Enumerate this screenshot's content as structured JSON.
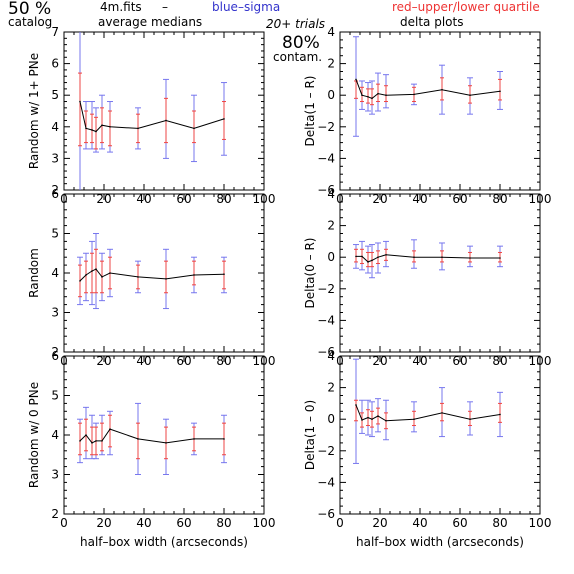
{
  "header": {
    "left_big": "50 %",
    "left_small": "catalog",
    "file": "4m.fits",
    "dash": "–",
    "sigma_note": "blue–sigma",
    "quartile_note": "red–upper/lower quartile",
    "avg_label": "average medians",
    "trials": "20+ trials",
    "contam_pct": "80%",
    "contam": "contam.",
    "delta_label": "delta plots"
  },
  "colors": {
    "sigma": "#7777ee",
    "quartile": "#ee4444",
    "median": "#000000"
  },
  "chart_data": [
    {
      "type": "line",
      "id": "avg-1plus",
      "ylabel": "Random w/ 1+ PNe",
      "xlabel": "",
      "xlim": [
        0,
        100
      ],
      "ylim": [
        2,
        7
      ],
      "xticks": [
        "0",
        "20",
        "40",
        "60",
        "80",
        "100"
      ],
      "yticks": [
        "2",
        "3",
        "4",
        "5",
        "6",
        "7"
      ],
      "x": [
        8,
        11,
        14,
        16,
        19,
        23,
        37,
        51,
        65,
        80
      ],
      "median": [
        4.8,
        3.95,
        3.9,
        3.85,
        4.05,
        4.0,
        3.95,
        4.2,
        3.95,
        4.25
      ],
      "sigma": [
        [
          0.5,
          7.2
        ],
        [
          3.3,
          4.8
        ],
        [
          3.3,
          4.8
        ],
        [
          3.2,
          4.6
        ],
        [
          3.3,
          5.0
        ],
        [
          3.2,
          4.8
        ],
        [
          3.3,
          4.6
        ],
        [
          3.0,
          5.5
        ],
        [
          2.9,
          5.0
        ],
        [
          3.1,
          5.4
        ]
      ],
      "quartile": [
        [
          3.4,
          5.7
        ],
        [
          3.5,
          4.5
        ],
        [
          3.5,
          4.4
        ],
        [
          3.3,
          4.3
        ],
        [
          3.5,
          4.6
        ],
        [
          3.4,
          4.5
        ],
        [
          3.5,
          4.4
        ],
        [
          3.5,
          4.9
        ],
        [
          3.5,
          4.5
        ],
        [
          3.6,
          4.8
        ]
      ]
    },
    {
      "type": "line",
      "id": "avg-random",
      "ylabel": "Random",
      "xlabel": "",
      "xlim": [
        0,
        100
      ],
      "ylim": [
        2,
        6
      ],
      "xticks": [
        "0",
        "20",
        "40",
        "60",
        "80",
        "100"
      ],
      "yticks": [
        "2",
        "3",
        "4",
        "5",
        "6"
      ],
      "x": [
        8,
        11,
        14,
        16,
        19,
        23,
        37,
        51,
        65,
        80
      ],
      "median": [
        3.8,
        3.95,
        4.05,
        4.1,
        3.9,
        4.0,
        3.9,
        3.85,
        3.95,
        3.97
      ],
      "sigma": [
        [
          3.2,
          4.4
        ],
        [
          3.3,
          4.5
        ],
        [
          3.2,
          4.8
        ],
        [
          3.1,
          5.0
        ],
        [
          3.3,
          4.5
        ],
        [
          3.4,
          4.6
        ],
        [
          3.5,
          4.3
        ],
        [
          3.1,
          4.6
        ],
        [
          3.5,
          4.4
        ],
        [
          3.5,
          4.4
        ]
      ],
      "quartile": [
        [
          3.4,
          4.2
        ],
        [
          3.5,
          4.3
        ],
        [
          3.5,
          4.5
        ],
        [
          3.5,
          4.6
        ],
        [
          3.5,
          4.3
        ],
        [
          3.6,
          4.4
        ],
        [
          3.6,
          4.2
        ],
        [
          3.5,
          4.3
        ],
        [
          3.7,
          4.3
        ],
        [
          3.6,
          4.3
        ]
      ]
    },
    {
      "type": "line",
      "id": "avg-0",
      "ylabel": "Random w/ 0 PNe",
      "xlabel": "half–box width (arcseconds)",
      "xlim": [
        0,
        100
      ],
      "ylim": [
        2,
        6
      ],
      "xticks": [
        "0",
        "20",
        "40",
        "60",
        "80",
        "100"
      ],
      "yticks": [
        "2",
        "3",
        "4",
        "5",
        "6"
      ],
      "x": [
        8,
        11,
        14,
        16,
        19,
        23,
        37,
        51,
        65,
        80
      ],
      "median": [
        3.85,
        4.0,
        3.8,
        3.85,
        3.85,
        4.15,
        3.9,
        3.8,
        3.9,
        3.9
      ],
      "sigma": [
        [
          3.3,
          4.4
        ],
        [
          3.4,
          4.7
        ],
        [
          3.4,
          4.5
        ],
        [
          3.4,
          4.3
        ],
        [
          3.5,
          4.5
        ],
        [
          3.5,
          4.6
        ],
        [
          3.0,
          4.8
        ],
        [
          3.0,
          4.4
        ],
        [
          3.5,
          4.3
        ],
        [
          3.3,
          4.5
        ]
      ],
      "quartile": [
        [
          3.5,
          4.3
        ],
        [
          3.6,
          4.4
        ],
        [
          3.5,
          4.2
        ],
        [
          3.5,
          4.2
        ],
        [
          3.6,
          4.3
        ],
        [
          3.7,
          4.5
        ],
        [
          3.4,
          4.3
        ],
        [
          3.4,
          4.2
        ],
        [
          3.6,
          4.2
        ],
        [
          3.5,
          4.3
        ]
      ]
    },
    {
      "type": "line",
      "id": "delta-1R",
      "ylabel": "Delta(1 – R)",
      "xlabel": "",
      "xlim": [
        0,
        100
      ],
      "ylim": [
        -6,
        4
      ],
      "xticks": [
        "0",
        "20",
        "40",
        "60",
        "80",
        "100"
      ],
      "yticks": [
        "−6",
        "−4",
        "−2",
        "0",
        "2",
        "4"
      ],
      "x": [
        8,
        11,
        14,
        16,
        19,
        23,
        37,
        51,
        65,
        80
      ],
      "median": [
        1.0,
        0.0,
        -0.1,
        -0.2,
        0.1,
        0.0,
        0.05,
        0.35,
        0.0,
        0.25
      ],
      "sigma": [
        [
          -2.6,
          3.7
        ],
        [
          -0.9,
          0.9
        ],
        [
          -1.0,
          0.8
        ],
        [
          -1.2,
          0.9
        ],
        [
          -1.0,
          1.4
        ],
        [
          -0.8,
          1.3
        ],
        [
          -0.6,
          0.7
        ],
        [
          -1.2,
          1.9
        ],
        [
          -1.2,
          1.1
        ],
        [
          -0.9,
          1.5
        ]
      ],
      "quartile": [
        [
          -0.2,
          0.9
        ],
        [
          -0.4,
          0.5
        ],
        [
          -0.5,
          0.4
        ],
        [
          -0.6,
          0.4
        ],
        [
          -0.4,
          0.7
        ],
        [
          -0.4,
          0.6
        ],
        [
          -0.4,
          0.5
        ],
        [
          -0.3,
          1.1
        ],
        [
          -0.5,
          0.6
        ],
        [
          -0.3,
          1.0
        ]
      ]
    },
    {
      "type": "line",
      "id": "delta-0R",
      "ylabel": "Delta(0 – R)",
      "xlabel": "",
      "xlim": [
        0,
        100
      ],
      "ylim": [
        -6,
        4
      ],
      "xticks": [
        "0",
        "20",
        "40",
        "60",
        "80",
        "100"
      ],
      "yticks": [
        "−6",
        "−4",
        "−2",
        "0",
        "2",
        "4"
      ],
      "x": [
        8,
        11,
        14,
        16,
        19,
        23,
        37,
        51,
        65,
        80
      ],
      "median": [
        0.05,
        0.05,
        -0.3,
        -0.2,
        0.0,
        0.15,
        0.0,
        0.0,
        -0.05,
        -0.05
      ],
      "sigma": [
        [
          -0.7,
          0.8
        ],
        [
          -0.8,
          1.0
        ],
        [
          -1.0,
          0.7
        ],
        [
          -1.3,
          0.8
        ],
        [
          -1.0,
          0.9
        ],
        [
          -0.6,
          1.0
        ],
        [
          -0.7,
          1.1
        ],
        [
          -0.8,
          0.9
        ],
        [
          -0.6,
          0.7
        ],
        [
          -0.6,
          0.7
        ]
      ],
      "quartile": [
        [
          -0.3,
          0.5
        ],
        [
          -0.4,
          0.5
        ],
        [
          -0.6,
          0.3
        ],
        [
          -0.6,
          0.3
        ],
        [
          -0.4,
          0.4
        ],
        [
          -0.2,
          0.5
        ],
        [
          -0.3,
          0.4
        ],
        [
          -0.3,
          0.4
        ],
        [
          -0.3,
          0.3
        ],
        [
          -0.3,
          0.3
        ]
      ]
    },
    {
      "type": "line",
      "id": "delta-10",
      "ylabel": "Delta(1 – 0)",
      "xlabel": "half–box width (arcseconds)",
      "xlim": [
        0,
        100
      ],
      "ylim": [
        -6,
        4
      ],
      "xticks": [
        "0",
        "20",
        "40",
        "60",
        "80",
        "100"
      ],
      "yticks": [
        "−6",
        "−4",
        "−2",
        "0",
        "2",
        "4"
      ],
      "x": [
        8,
        11,
        14,
        16,
        19,
        23,
        37,
        51,
        65,
        80
      ],
      "median": [
        0.9,
        -0.05,
        0.1,
        0.0,
        0.2,
        -0.1,
        0.0,
        0.4,
        0.0,
        0.3
      ],
      "sigma": [
        [
          -2.8,
          3.8
        ],
        [
          -0.9,
          1.2
        ],
        [
          -1.0,
          1.2
        ],
        [
          -1.1,
          1.1
        ],
        [
          -0.8,
          1.3
        ],
        [
          -1.3,
          1.2
        ],
        [
          -0.8,
          1.1
        ],
        [
          -1.1,
          2.0
        ],
        [
          -1.0,
          1.1
        ],
        [
          -1.1,
          1.7
        ]
      ],
      "quartile": [
        [
          -0.1,
          1.2
        ],
        [
          -0.5,
          0.4
        ],
        [
          -0.4,
          0.6
        ],
        [
          -0.5,
          0.5
        ],
        [
          -0.3,
          0.7
        ],
        [
          -0.6,
          0.4
        ],
        [
          -0.4,
          0.5
        ],
        [
          -0.1,
          1.0
        ],
        [
          -0.4,
          0.5
        ],
        [
          -0.2,
          1.0
        ]
      ]
    }
  ]
}
